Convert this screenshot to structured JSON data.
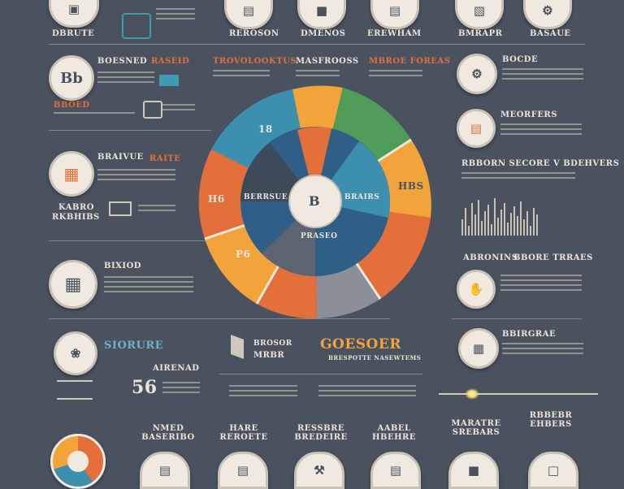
{
  "top_row": {
    "labels": [
      "DBRUTE",
      "REROSON",
      "DMENOS",
      "EREWHAM",
      "BMRAPR",
      "BASAUE"
    ]
  },
  "left": {
    "item1": {
      "badge": "Bb",
      "title1": "BOESNED",
      "title2": "RASEID",
      "sub": "BBOED"
    },
    "item2": {
      "title1": "BRAIVUE",
      "title2": "RAITE",
      "sub": "KABRO",
      "sub2": "RKBHIBS"
    },
    "item3": {
      "title": "BIXIOD"
    },
    "item4": {
      "title": "SIORURE",
      "big": "56",
      "sub": "AIRENAD"
    }
  },
  "center": {
    "top_titles": [
      "TROVOLOOKTUS",
      "MASFROOSS",
      "MBROE FOREAS"
    ],
    "wedge_labels": [
      "18",
      "H6",
      "P6",
      "HBS"
    ],
    "inner_labels": [
      "BERRSUE",
      "BRAIRS"
    ],
    "hub_label": "B",
    "bottom_label": "PRASEO",
    "bottom_brand": "GOESOER",
    "bottom_brand_sub": "BRESPOTTE NASEWTEMS",
    "left_brand": "BROSOR",
    "left_brand2": "MRBR"
  },
  "right": {
    "item1": {
      "title": "BOCDE"
    },
    "item2": {
      "title": "MEORFERS"
    },
    "item3": {
      "title": "RBBORN SECORE V BDEHVERS"
    },
    "item4": {
      "title1": "ABRONINS",
      "title2": "BBORE TRRAES"
    },
    "item5": {
      "title": "BBIRGRAE"
    }
  },
  "bottom_row": {
    "labels": [
      "NMED BASERIBO",
      "HARE REROETE",
      "RESSBRE BREDEIRE",
      "AABEL HBEHRE",
      "MARATRE SREBARS",
      "RBBEBR EHBERS"
    ]
  },
  "colors": {
    "background": "#4a5260",
    "orange": "#e36f3a",
    "teal": "#3d8fb0",
    "green": "#4f9b58",
    "yellow": "#f2a33a",
    "gray": "#8a8f98",
    "cream": "#efe9df"
  }
}
